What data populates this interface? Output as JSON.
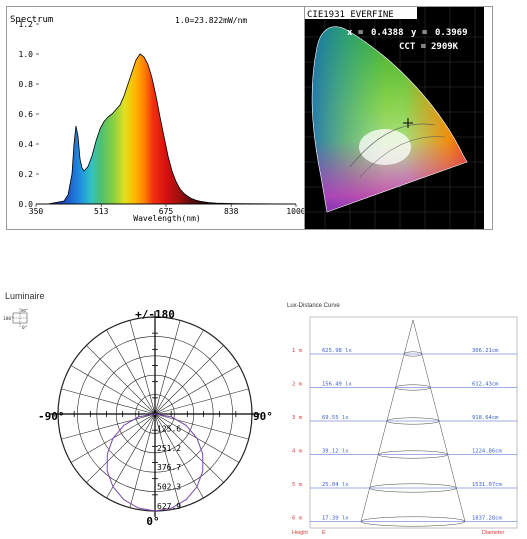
{
  "chart_data": [
    {
      "type": "area",
      "title": "Spectrum",
      "annotation": "1.0=23.822mW/nm",
      "xlabel": "Wavelength(nm)",
      "ylabel": "",
      "xlim": [
        350,
        1000
      ],
      "ylim": [
        0,
        1.2
      ],
      "xticks": [
        "350",
        "513",
        "675",
        "838",
        "1000"
      ],
      "yticks": [
        "0.0",
        "0.2",
        "0.4",
        "0.6",
        "0.8",
        "1.0",
        "1.2"
      ],
      "x": [
        350,
        380,
        400,
        420,
        430,
        440,
        445,
        450,
        455,
        460,
        465,
        470,
        480,
        490,
        500,
        510,
        520,
        530,
        540,
        550,
        560,
        570,
        580,
        590,
        600,
        610,
        620,
        630,
        640,
        650,
        660,
        670,
        680,
        690,
        700,
        710,
        720,
        730,
        740,
        750,
        760,
        780,
        800,
        820,
        850,
        900,
        1000
      ],
      "values": [
        0.0,
        0.0,
        0.01,
        0.02,
        0.06,
        0.2,
        0.4,
        0.52,
        0.45,
        0.3,
        0.24,
        0.22,
        0.25,
        0.32,
        0.42,
        0.5,
        0.55,
        0.58,
        0.6,
        0.63,
        0.66,
        0.72,
        0.8,
        0.88,
        0.96,
        1.0,
        0.98,
        0.93,
        0.84,
        0.72,
        0.58,
        0.45,
        0.32,
        0.22,
        0.15,
        0.1,
        0.07,
        0.05,
        0.035,
        0.025,
        0.018,
        0.01,
        0.006,
        0.004,
        0.002,
        0.001,
        0.0
      ]
    },
    {
      "type": "scatter",
      "title": "CIE1931 EVERFINE",
      "x_label": "x =",
      "x_value": "0.4388",
      "y_label": "y =",
      "y_value": "0.3969",
      "cct_label": "CCT =",
      "cct_value": "2909K",
      "point": {
        "x": 0.4388,
        "y": 0.3969
      }
    },
    {
      "type": "line",
      "title": "Luminaire",
      "top_label": "+/-180",
      "bottom_label": "0°",
      "left_label": "-90°",
      "right_label": "90°",
      "legend_labels": [
        "90°",
        "180°",
        "0°"
      ],
      "radial_ticks": [
        "125.6",
        "251.2",
        "376.7",
        "502.3",
        "627.9"
      ],
      "rmax": 627.9,
      "angles": [
        0,
        10,
        20,
        30,
        40,
        50,
        60,
        70,
        80,
        90
      ],
      "intensity": [
        627.9,
        618,
        590,
        544,
        481,
        403,
        314,
        215,
        109,
        0
      ]
    },
    {
      "type": "table",
      "title": "Lux-Distance Curve",
      "height_header": "Height",
      "e_header": "E",
      "diameter_header": "Diameter",
      "heights": [
        "1 m",
        "2 m",
        "3 m",
        "4 m",
        "5 m",
        "6 m"
      ],
      "lux": [
        "625.98 lx",
        "156.49 lx",
        "69.55 lx",
        "39.12 lx",
        "25.04 lx",
        "17.39 lx"
      ],
      "diameters": [
        "306.21cm",
        "612.43cm",
        "918.64cm",
        "1224.86cm",
        "1531.07cm",
        "1837.28cm"
      ]
    }
  ]
}
